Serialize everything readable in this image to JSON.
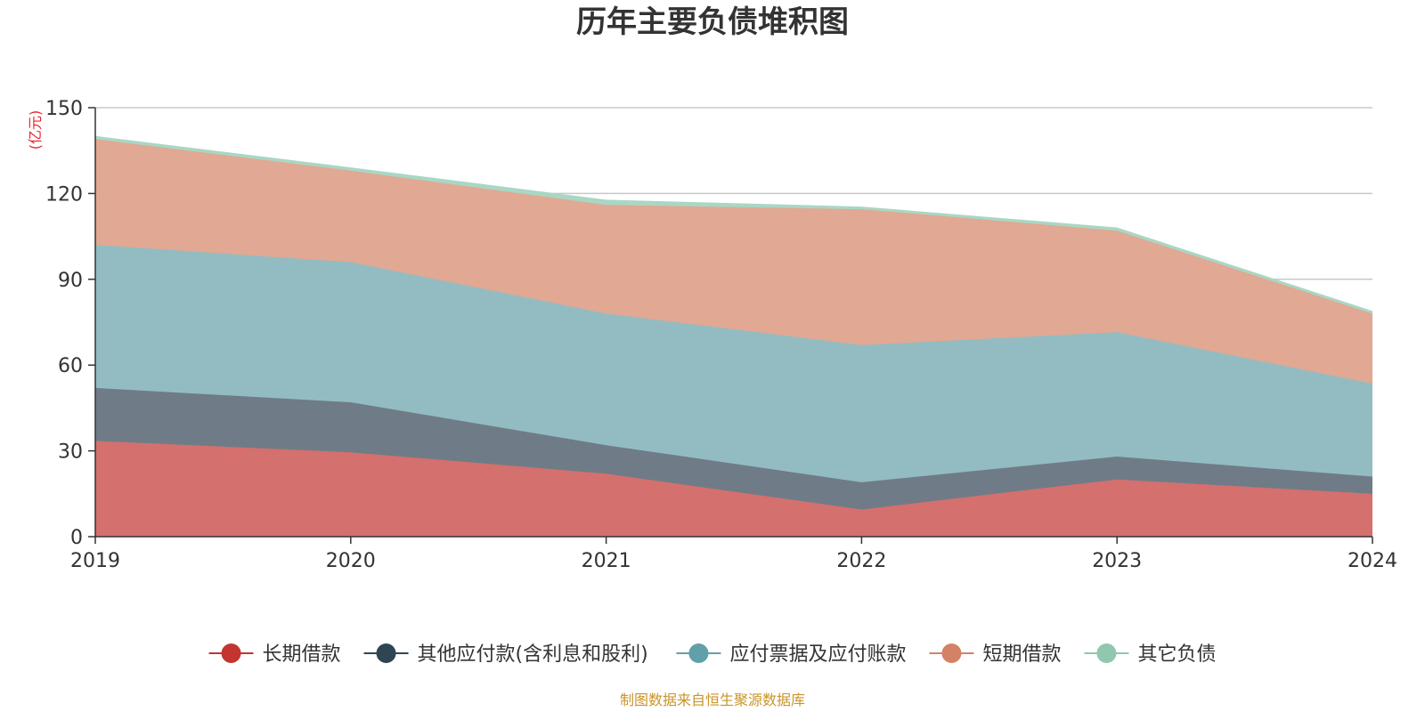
{
  "chart_data": {
    "type": "area",
    "stacked": true,
    "title": "历年主要负债堆积图",
    "unit": "(亿元)",
    "x": [
      "2019",
      "2020",
      "2021",
      "2022",
      "2023",
      "2024"
    ],
    "ylim": [
      0,
      150
    ],
    "yticks": [
      0,
      30,
      60,
      90,
      120,
      150
    ],
    "grid": true,
    "legend_position": "bottom",
    "series": [
      {
        "name": "长期借款",
        "color": "#c23531",
        "fill": "#d4706e",
        "values": [
          33.5,
          29.5,
          22,
          9.5,
          20,
          15
        ]
      },
      {
        "name": "其他应付款(含利息和股利)",
        "color": "#2f4554",
        "fill": "#6f7c87",
        "values": [
          18.5,
          17.5,
          10,
          9.5,
          8,
          6
        ]
      },
      {
        "name": "应付票据及应付账款",
        "color": "#61a0a8",
        "fill": "#93bcc2",
        "values": [
          50,
          49,
          46,
          48,
          43.5,
          32.5
        ]
      },
      {
        "name": "短期借款",
        "color": "#d48265",
        "fill": "#e1a893",
        "values": [
          37,
          32,
          38,
          47.5,
          35.5,
          24.5
        ]
      },
      {
        "name": "其它负债",
        "color": "#91c7ae",
        "fill": "#a9d7c3",
        "values": [
          0.8,
          0.8,
          1.5,
          0.6,
          0.8,
          0.6
        ]
      }
    ]
  },
  "footer": {
    "source": "制图数据来自恒生聚源数据库"
  }
}
